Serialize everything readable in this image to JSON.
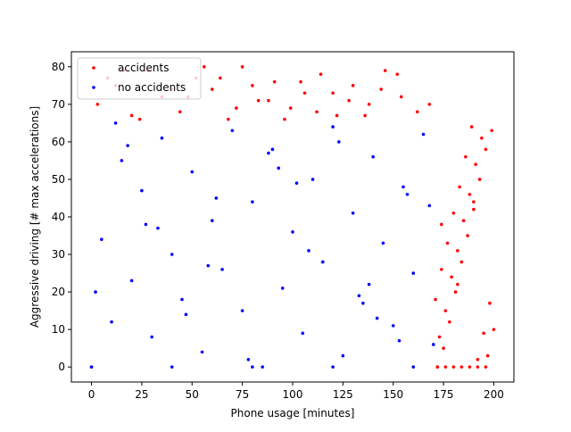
{
  "chart_data": {
    "type": "scatter",
    "xlabel": "Phone usage [minutes]",
    "ylabel": "Aggressive driving [# max accelerations]",
    "xlim": [
      -10,
      210
    ],
    "ylim": [
      -4,
      84
    ],
    "xticks": [
      0,
      25,
      50,
      75,
      100,
      125,
      150,
      175,
      200
    ],
    "yticks": [
      0,
      10,
      20,
      30,
      40,
      50,
      60,
      70,
      80
    ],
    "legend": "upper left",
    "series": [
      {
        "name": "accidents",
        "color": "#ff0000",
        "x": [
          3,
          12,
          20,
          28,
          35,
          44,
          52,
          60,
          68,
          75,
          83,
          91,
          99,
          106,
          114,
          122,
          130,
          138,
          146,
          154,
          162,
          8,
          24,
          40,
          56,
          72,
          88,
          104,
          120,
          136,
          152,
          168,
          16,
          48,
          80,
          112,
          144,
          64,
          96,
          128,
          172,
          175,
          178,
          181,
          184,
          187,
          190,
          193,
          196,
          199,
          173,
          176,
          179,
          182,
          185,
          188,
          191,
          194,
          197,
          200,
          171,
          174,
          177,
          180,
          183,
          186,
          189,
          192,
          195,
          198,
          172,
          176,
          180,
          184,
          188,
          192,
          196,
          174,
          182,
          190
        ],
        "values": [
          70,
          75,
          67,
          79,
          72,
          68,
          77,
          74,
          66,
          80,
          71,
          76,
          69,
          73,
          78,
          67,
          75,
          70,
          79,
          72,
          68,
          77,
          66,
          74,
          80,
          69,
          71,
          76,
          73,
          67,
          78,
          70,
          79,
          72,
          75,
          68,
          74,
          77,
          66,
          71,
          0,
          5,
          12,
          20,
          28,
          35,
          42,
          50,
          58,
          63,
          8,
          15,
          24,
          31,
          39,
          46,
          54,
          61,
          3,
          10,
          18,
          26,
          33,
          41,
          48,
          56,
          64,
          2,
          9,
          17,
          0,
          0,
          0,
          0,
          0,
          0,
          0,
          38,
          22,
          44
        ]
      },
      {
        "name": "no accidents",
        "color": "#0000ff",
        "x": [
          0,
          5,
          10,
          15,
          20,
          25,
          30,
          35,
          40,
          45,
          50,
          55,
          60,
          65,
          70,
          75,
          80,
          85,
          90,
          95,
          100,
          105,
          110,
          115,
          120,
          125,
          130,
          135,
          140,
          145,
          150,
          155,
          160,
          165,
          170,
          2,
          18,
          33,
          47,
          62,
          78,
          93,
          108,
          123,
          138,
          153,
          168,
          0,
          40,
          80,
          120,
          160,
          12,
          58,
          102,
          142,
          27,
          88,
          133,
          157
        ],
        "values": [
          0,
          34,
          12,
          55,
          23,
          47,
          8,
          61,
          30,
          18,
          52,
          4,
          39,
          26,
          63,
          15,
          44,
          0,
          58,
          21,
          36,
          9,
          50,
          28,
          64,
          3,
          41,
          17,
          56,
          33,
          11,
          48,
          25,
          62,
          6,
          20,
          59,
          37,
          14,
          45,
          2,
          53,
          31,
          60,
          22,
          7,
          43,
          0,
          0,
          0,
          0,
          0,
          65,
          27,
          49,
          13,
          38,
          57,
          19,
          46
        ]
      }
    ]
  }
}
